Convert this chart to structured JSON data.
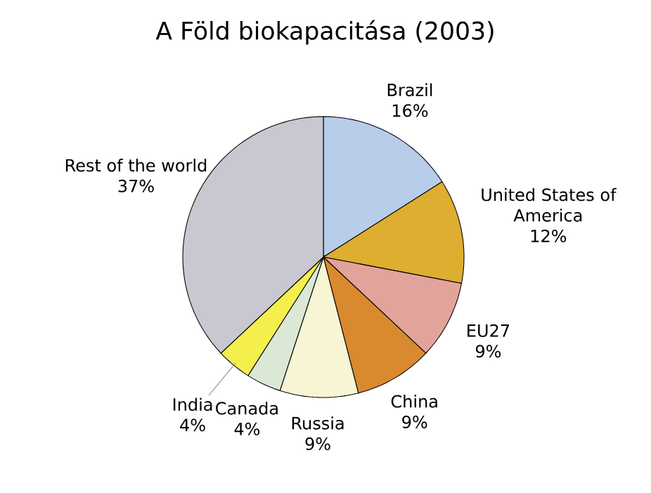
{
  "chart_data": {
    "type": "pie",
    "title": "A Föld biokapacitása (2003)",
    "categories": [
      "Brazil",
      "United States of America",
      "EU27",
      "China",
      "Russia",
      "Canada",
      "India",
      "Rest of the world"
    ],
    "values": [
      16,
      12,
      9,
      9,
      9,
      4,
      4,
      37
    ],
    "value_labels": [
      "16%",
      "12%",
      "9%",
      "9%",
      "9%",
      "4%",
      "4%",
      "37%"
    ],
    "colors": [
      "#b7cdea",
      "#ddae2f",
      "#e2a39a",
      "#d98a2e",
      "#f8f5d5",
      "#dce8d6",
      "#f4ef4c",
      "#c9c8d1"
    ]
  }
}
